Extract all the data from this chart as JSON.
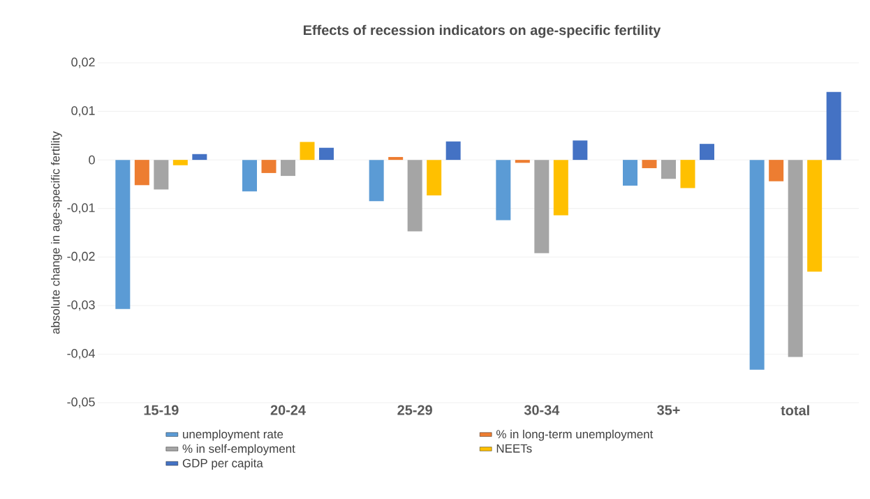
{
  "chart_data": {
    "type": "bar",
    "title": "Effects of recession indicators on age-specific fertility",
    "ylabel": "absolute change in age-specific fertility",
    "categories": [
      "15-19",
      "20-24",
      "25-29",
      "30-34",
      "35+",
      "total"
    ],
    "series": [
      {
        "name": "unemployment rate",
        "color": "#5b9bd5",
        "values": [
          -0.0307,
          -0.0065,
          -0.0085,
          -0.0124,
          -0.0053,
          -0.0432
        ]
      },
      {
        "name": "% in long-term unemployment",
        "color": "#ed7d31",
        "values": [
          -0.0052,
          -0.0027,
          0.0006,
          -0.0006,
          -0.0017,
          -0.0044
        ]
      },
      {
        "name": "% in self-employment",
        "color": "#a5a5a5",
        "values": [
          -0.0061,
          -0.0033,
          -0.0147,
          -0.0192,
          -0.0039,
          -0.0406
        ]
      },
      {
        "name": "NEETs",
        "color": "#ffc000",
        "values": [
          -0.0011,
          0.0037,
          -0.0073,
          -0.0114,
          -0.0058,
          -0.023
        ]
      },
      {
        "name": "GDP per capita",
        "color": "#4472c4",
        "values": [
          0.0012,
          0.0025,
          0.0038,
          0.004,
          0.0033,
          0.014
        ]
      }
    ],
    "ylim": [
      -0.05,
      0.02
    ],
    "yticks": [
      {
        "value": -0.05,
        "label": "-0,05"
      },
      {
        "value": -0.04,
        "label": "-0,04"
      },
      {
        "value": -0.03,
        "label": "-0,03"
      },
      {
        "value": -0.02,
        "label": "-0,02"
      },
      {
        "value": -0.01,
        "label": "-0,01"
      },
      {
        "value": 0,
        "label": "0"
      },
      {
        "value": 0.01,
        "label": "0,01"
      },
      {
        "value": 0.02,
        "label": "0,02"
      }
    ],
    "grid": "y",
    "legend": "bottom"
  }
}
